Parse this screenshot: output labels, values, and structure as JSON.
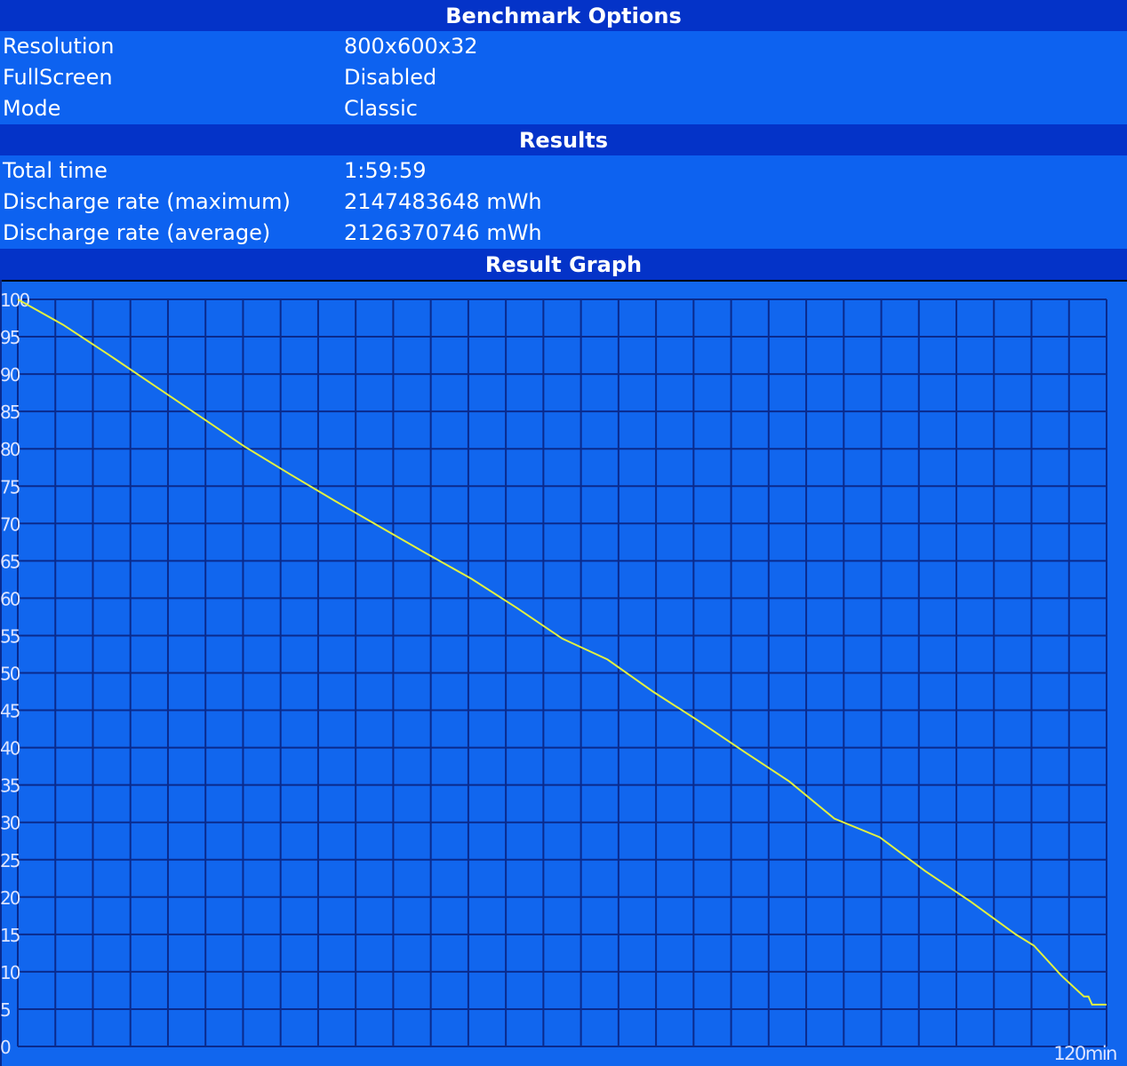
{
  "sections": {
    "options_title": "Benchmark Options",
    "results_title": "Results",
    "graph_title": "Result Graph"
  },
  "options": [
    {
      "label": "Resolution",
      "value": "800x600x32"
    },
    {
      "label": "FullScreen",
      "value": "Disabled"
    },
    {
      "label": "Mode",
      "value": "Classic"
    }
  ],
  "results": [
    {
      "label": "Total time",
      "value": "1:59:59"
    },
    {
      "label": "Discharge rate (maximum)",
      "value": "2147483648 mWh"
    },
    {
      "label": "Discharge rate (average)",
      "value": "2126370746 mWh"
    }
  ],
  "colors": {
    "header": "#0433c8",
    "row": "#0d62f0",
    "plot_bg": "#1166ee",
    "grid": "#0a2a8c",
    "line": "#e2f040",
    "tick": "#dde4ff"
  },
  "chart_data": {
    "type": "line",
    "title": "",
    "xlabel": "",
    "ylabel": "",
    "x_end_label": "120min",
    "xlim": [
      0,
      120
    ],
    "ylim": [
      0,
      100
    ],
    "yticks": [
      0,
      5,
      10,
      15,
      20,
      25,
      30,
      35,
      40,
      45,
      50,
      55,
      60,
      65,
      70,
      75,
      80,
      85,
      90,
      95,
      100
    ],
    "grid": true,
    "x": [
      0,
      5,
      10,
      15,
      20,
      25,
      30,
      35,
      40,
      45,
      50,
      55,
      60,
      65,
      70,
      75,
      80,
      85,
      90,
      95,
      100,
      105,
      110,
      112,
      115,
      117.5,
      118,
      118.4,
      120
    ],
    "y": [
      100,
      96.6,
      92.6,
      88.5,
      84.4,
      80.3,
      76.6,
      73,
      69.5,
      66,
      62.6,
      58.7,
      54.6,
      51.8,
      47.5,
      43.6,
      39.5,
      35.5,
      30.5,
      28,
      23.5,
      19.4,
      15,
      13.5,
      9.5,
      6.7,
      6.7,
      5.6,
      5.6
    ]
  }
}
